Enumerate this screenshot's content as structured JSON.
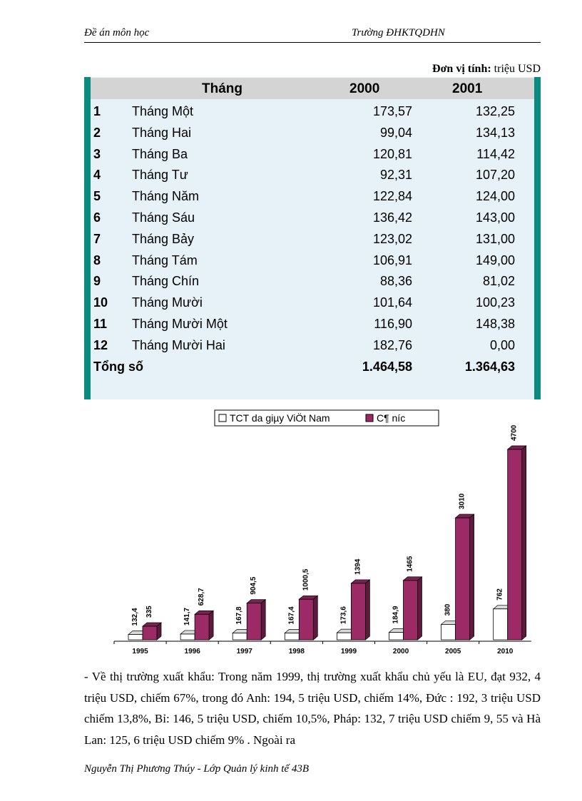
{
  "header": {
    "left": "Đề án môn học",
    "right": "Trường ĐHKTQDHN"
  },
  "unit": {
    "label": "Đơn vị tính:",
    "value": "triệu USD"
  },
  "table": {
    "columns": [
      "Tháng",
      "2000",
      "2001"
    ],
    "rows": [
      [
        "1",
        "Tháng Một",
        "173,57",
        "132,25"
      ],
      [
        "2",
        "Tháng Hai",
        "99,04",
        "134,13"
      ],
      [
        "3",
        "Tháng Ba",
        "120,81",
        "114,42"
      ],
      [
        "4",
        "Tháng Tư",
        "92,31",
        "107,20"
      ],
      [
        "5",
        "Tháng Năm",
        "122,84",
        "124,00"
      ],
      [
        "6",
        "Tháng Sáu",
        "136,42",
        "143,00"
      ],
      [
        "7",
        "Tháng Bảy",
        "123,02",
        "131,00"
      ],
      [
        "8",
        "Tháng Tám",
        "106,91",
        "149,00"
      ],
      [
        "9",
        "Tháng Chín",
        "88,36",
        "81,02"
      ],
      [
        "10",
        "Tháng Mười",
        "101,64",
        "100,23"
      ],
      [
        "11",
        "Tháng Mười Một",
        "116,90",
        "148,38"
      ],
      [
        "12",
        "Tháng Mười Hai",
        "182,76",
        "0,00"
      ]
    ],
    "total": {
      "label": "Tổng số",
      "a": "1.464,58",
      "b": "1.364,63"
    },
    "accent": "#0b8a80"
  },
  "chart_data": {
    "type": "bar",
    "categories": [
      "1995",
      "1996",
      "1997",
      "1998",
      "1999",
      "2000",
      "2005",
      "2010"
    ],
    "series": [
      {
        "name": "TCT da giµy ViÖt Nam",
        "values": [
          132.4,
          141.7,
          167.8,
          167.4,
          173.6,
          184.9,
          380,
          762
        ],
        "labels": [
          "132,4",
          "141,7",
          "167,8",
          "167,4",
          "173,6",
          "184,9",
          "380",
          "762"
        ],
        "color": "#ffffff"
      },
      {
        "name": "C¶ n­íc",
        "values": [
          335,
          628.7,
          904.5,
          1000.5,
          1394,
          1465,
          3010,
          4700
        ],
        "labels": [
          "335",
          "628,7",
          "904,5",
          "1000,5",
          "1394",
          "1465",
          "3010",
          "4700"
        ],
        "color": "#9b2a66"
      }
    ],
    "style": "3d-clustered",
    "legend": "top",
    "grid": false
  },
  "paragraph": "-    Về thị trường xuất khẩu: Trong năm 1999, thị trường xuất khẩu chủ yếu là EU, đạt 932, 4 triệu  USD, chiếm 67%, trong đó Anh: 194, 5 triệu  USD, chiếm 14%, Đức : 192, 3 triệu USD chiếm 13,8%, Bỉ: 146, 5 triệu USD, chiếm 10,5%, Pháp: 132, 7 triệu USD chiếm 9, 55 và Hà Lan: 125, 6 triệu USD chiếm 9% . Ngoài ra",
  "footer": "Nguyễn Thị Phương Thúy - Lớp Quản lý kinh tế 43B"
}
